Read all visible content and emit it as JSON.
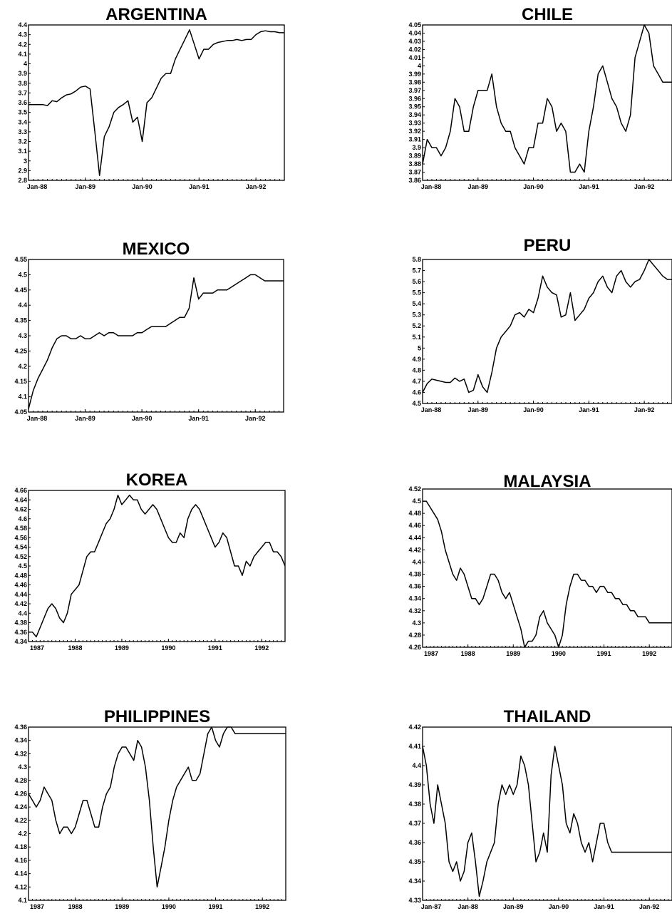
{
  "chart_data": [
    {
      "type": "line",
      "title": "ARGENTINA",
      "ylim": [
        2.8,
        4.4
      ],
      "yticks": [
        "4.4",
        "4.3",
        "4.2",
        "4.1",
        "4",
        "3.9",
        "3.8",
        "3.7",
        "3.6",
        "3.5",
        "3.4",
        "3.3",
        "3.2",
        "3.1",
        "3",
        "2.9",
        "2.8"
      ],
      "xticks": [
        "Jan-88",
        "Jan-89",
        "Jan-90",
        "Jan-91",
        "Jan-92"
      ],
      "xrange": [
        0,
        54
      ],
      "xtick_pos": [
        0,
        12,
        24,
        36,
        48
      ],
      "values": [
        3.58,
        3.58,
        3.58,
        3.58,
        3.57,
        3.62,
        3.61,
        3.65,
        3.68,
        3.69,
        3.72,
        3.76,
        3.77,
        3.74,
        3.3,
        2.85,
        3.25,
        3.35,
        3.5,
        3.55,
        3.58,
        3.62,
        3.4,
        3.45,
        3.2,
        3.6,
        3.65,
        3.75,
        3.85,
        3.9,
        3.9,
        4.05,
        4.15,
        4.25,
        4.35,
        4.2,
        4.05,
        4.15,
        4.15,
        4.2,
        4.22,
        4.23,
        4.24,
        4.24,
        4.25,
        4.24,
        4.25,
        4.25,
        4.3,
        4.33,
        4.34,
        4.33,
        4.33,
        4.32,
        4.32
      ]
    },
    {
      "type": "line",
      "title": "CHILE",
      "ylim": [
        3.86,
        4.05
      ],
      "yticks": [
        "4.05",
        "4.04",
        "4.03",
        "4.02",
        "4.01",
        "4",
        "3.99",
        "3.98",
        "3.97",
        "3.96",
        "3.95",
        "3.94",
        "3.93",
        "3.92",
        "3.91",
        "3.9",
        "3.89",
        "3.88",
        "3.87",
        "3.86"
      ],
      "xticks": [
        "Jan-88",
        "Jan-89",
        "Jan-90",
        "Jan-91",
        "Jan-92"
      ],
      "xrange": [
        0,
        54
      ],
      "xtick_pos": [
        0,
        12,
        24,
        36,
        48
      ],
      "values": [
        3.88,
        3.91,
        3.9,
        3.9,
        3.89,
        3.9,
        3.92,
        3.96,
        3.95,
        3.92,
        3.92,
        3.95,
        3.97,
        3.97,
        3.97,
        3.99,
        3.95,
        3.93,
        3.92,
        3.92,
        3.9,
        3.89,
        3.88,
        3.9,
        3.9,
        3.93,
        3.93,
        3.96,
        3.95,
        3.92,
        3.93,
        3.92,
        3.87,
        3.87,
        3.88,
        3.87,
        3.92,
        3.95,
        3.99,
        4.0,
        3.98,
        3.96,
        3.95,
        3.93,
        3.92,
        3.94,
        4.01,
        4.03,
        4.05,
        4.04,
        4.0,
        3.99,
        3.98,
        3.98,
        3.98
      ]
    },
    {
      "type": "line",
      "title": "MEXICO",
      "ylim": [
        4.05,
        4.55
      ],
      "yticks": [
        "4.55",
        "4.5",
        "4.45",
        "4.4",
        "4.35",
        "4.3",
        "4.25",
        "4.2",
        "4.15",
        "4.1",
        "4.05"
      ],
      "xticks": [
        "Jan-88",
        "Jan-89",
        "Jan-90",
        "Jan-91",
        "Jan-92"
      ],
      "xrange": [
        0,
        54
      ],
      "xtick_pos": [
        0,
        12,
        24,
        36,
        48
      ],
      "values": [
        4.06,
        4.12,
        4.16,
        4.19,
        4.22,
        4.26,
        4.29,
        4.3,
        4.3,
        4.29,
        4.29,
        4.3,
        4.29,
        4.29,
        4.3,
        4.31,
        4.3,
        4.31,
        4.31,
        4.3,
        4.3,
        4.3,
        4.3,
        4.31,
        4.31,
        4.32,
        4.33,
        4.33,
        4.33,
        4.33,
        4.34,
        4.35,
        4.36,
        4.36,
        4.39,
        4.49,
        4.42,
        4.44,
        4.44,
        4.44,
        4.45,
        4.45,
        4.45,
        4.46,
        4.47,
        4.48,
        4.49,
        4.5,
        4.5,
        4.49,
        4.48,
        4.48,
        4.48,
        4.48,
        4.48
      ]
    },
    {
      "type": "line",
      "title": "PERU",
      "ylim": [
        4.5,
        5.8
      ],
      "yticks": [
        "5.8",
        "5.7",
        "5.6",
        "5.5",
        "5.4",
        "5.3",
        "5.2",
        "5.1",
        "5",
        "4.9",
        "4.8",
        "4.7",
        "4.6",
        "4.5"
      ],
      "xticks": [
        "Jan-88",
        "Jan-89",
        "Jan-90",
        "Jan-91",
        "Jan-92"
      ],
      "xrange": [
        0,
        54
      ],
      "xtick_pos": [
        0,
        12,
        24,
        36,
        48
      ],
      "values": [
        4.6,
        4.68,
        4.72,
        4.71,
        4.7,
        4.69,
        4.69,
        4.73,
        4.7,
        4.72,
        4.6,
        4.62,
        4.76,
        4.65,
        4.6,
        4.78,
        5.0,
        5.1,
        5.15,
        5.2,
        5.3,
        5.32,
        5.28,
        5.35,
        5.32,
        5.45,
        5.65,
        5.55,
        5.5,
        5.48,
        5.28,
        5.3,
        5.5,
        5.25,
        5.3,
        5.35,
        5.45,
        5.5,
        5.6,
        5.65,
        5.55,
        5.5,
        5.65,
        5.7,
        5.6,
        5.55,
        5.6,
        5.62,
        5.7,
        5.8,
        5.75,
        5.7,
        5.65,
        5.62,
        5.62
      ]
    },
    {
      "type": "line",
      "title": "KOREA",
      "ylim": [
        4.34,
        4.66
      ],
      "yticks": [
        "4.66",
        "4.64",
        "4.62",
        "4.6",
        "4.58",
        "4.56",
        "4.54",
        "4.52",
        "4.5",
        "4.48",
        "4.46",
        "4.44",
        "4.42",
        "4.4",
        "4.38",
        "4.36",
        "4.34"
      ],
      "xticks": [
        "1987",
        "1988",
        "1989",
        "1990",
        "1991",
        "1992"
      ],
      "xrange": [
        0,
        66
      ],
      "xtick_pos": [
        0,
        12,
        24,
        36,
        48,
        60
      ],
      "values": [
        4.36,
        4.36,
        4.35,
        4.37,
        4.39,
        4.41,
        4.42,
        4.41,
        4.39,
        4.38,
        4.4,
        4.44,
        4.45,
        4.46,
        4.49,
        4.52,
        4.53,
        4.53,
        4.55,
        4.57,
        4.59,
        4.6,
        4.62,
        4.65,
        4.63,
        4.64,
        4.65,
        4.64,
        4.64,
        4.62,
        4.61,
        4.62,
        4.63,
        4.62,
        4.6,
        4.58,
        4.56,
        4.55,
        4.55,
        4.57,
        4.56,
        4.6,
        4.62,
        4.63,
        4.62,
        4.6,
        4.58,
        4.56,
        4.54,
        4.55,
        4.57,
        4.56,
        4.53,
        4.5,
        4.5,
        4.48,
        4.51,
        4.5,
        4.52,
        4.53,
        4.54,
        4.55,
        4.55,
        4.53,
        4.53,
        4.52,
        4.5
      ]
    },
    {
      "type": "line",
      "title": "MALAYSIA",
      "ylim": [
        4.26,
        4.52
      ],
      "yticks": [
        "4.52",
        "4.5",
        "4.48",
        "4.46",
        "4.44",
        "4.42",
        "4.4",
        "4.38",
        "4.36",
        "4.34",
        "4.32",
        "4.3",
        "4.28",
        "4.26"
      ],
      "xticks": [
        "1987",
        "1988",
        "1989",
        "1990",
        "1991",
        "1992"
      ],
      "xrange": [
        0,
        66
      ],
      "xtick_pos": [
        0,
        12,
        24,
        36,
        48,
        60
      ],
      "values": [
        4.5,
        4.5,
        4.49,
        4.48,
        4.47,
        4.45,
        4.42,
        4.4,
        4.38,
        4.37,
        4.39,
        4.38,
        4.36,
        4.34,
        4.34,
        4.33,
        4.34,
        4.36,
        4.38,
        4.38,
        4.37,
        4.35,
        4.34,
        4.35,
        4.33,
        4.31,
        4.29,
        4.26,
        4.27,
        4.27,
        4.28,
        4.31,
        4.32,
        4.3,
        4.29,
        4.28,
        4.26,
        4.28,
        4.33,
        4.36,
        4.38,
        4.38,
        4.37,
        4.37,
        4.36,
        4.36,
        4.35,
        4.36,
        4.36,
        4.35,
        4.35,
        4.34,
        4.34,
        4.33,
        4.33,
        4.32,
        4.32,
        4.31,
        4.31,
        4.31,
        4.3,
        4.3,
        4.3,
        4.3,
        4.3,
        4.3,
        4.3
      ]
    },
    {
      "type": "line",
      "title": "PHILIPPINES",
      "ylim": [
        4.1,
        4.36
      ],
      "yticks": [
        "4.36",
        "4.34",
        "4.32",
        "4.3",
        "4.28",
        "4.26",
        "4.24",
        "4.22",
        "4.2",
        "4.18",
        "4.16",
        "4.14",
        "4.12",
        "4.1"
      ],
      "xticks": [
        "1987",
        "1988",
        "1989",
        "1990",
        "1991",
        "1992"
      ],
      "xrange": [
        0,
        66
      ],
      "xtick_pos": [
        0,
        12,
        24,
        36,
        48,
        60
      ],
      "values": [
        4.26,
        4.25,
        4.24,
        4.25,
        4.27,
        4.26,
        4.25,
        4.22,
        4.2,
        4.21,
        4.21,
        4.2,
        4.21,
        4.23,
        4.25,
        4.25,
        4.23,
        4.21,
        4.21,
        4.24,
        4.26,
        4.27,
        4.3,
        4.32,
        4.33,
        4.33,
        4.32,
        4.31,
        4.34,
        4.33,
        4.3,
        4.25,
        4.18,
        4.12,
        4.15,
        4.18,
        4.22,
        4.25,
        4.27,
        4.28,
        4.29,
        4.3,
        4.28,
        4.28,
        4.29,
        4.32,
        4.35,
        4.36,
        4.34,
        4.33,
        4.35,
        4.36,
        4.36,
        4.35,
        4.35,
        4.35,
        4.35,
        4.35,
        4.35,
        4.35,
        4.35,
        4.35,
        4.35,
        4.35,
        4.35,
        4.35,
        4.35
      ]
    },
    {
      "type": "line",
      "title": "THAILAND",
      "ylim": [
        4.33,
        4.42
      ],
      "yticks": [
        "4.42",
        "4.41",
        "4.4",
        "4.39",
        "4.38",
        "4.37",
        "4.36",
        "4.35",
        "4.34",
        "4.33"
      ],
      "xticks": [
        "Jan-87",
        "Jan-88",
        "Jan-89",
        "Jan-90",
        "Jan-91",
        "Jan-92"
      ],
      "xrange": [
        0,
        66
      ],
      "xtick_pos": [
        0,
        12,
        24,
        36,
        48,
        60
      ],
      "values": [
        4.41,
        4.4,
        4.38,
        4.37,
        4.39,
        4.38,
        4.37,
        4.35,
        4.345,
        4.35,
        4.34,
        4.345,
        4.36,
        4.365,
        4.35,
        4.332,
        4.34,
        4.35,
        4.355,
        4.36,
        4.38,
        4.39,
        4.385,
        4.39,
        4.385,
        4.39,
        4.405,
        4.4,
        4.39,
        4.37,
        4.35,
        4.355,
        4.365,
        4.355,
        4.395,
        4.41,
        4.4,
        4.39,
        4.37,
        4.365,
        4.375,
        4.37,
        4.36,
        4.355,
        4.36,
        4.35,
        4.36,
        4.37,
        4.37,
        4.36,
        4.355,
        4.355,
        4.355,
        4.355,
        4.355,
        4.355,
        4.355,
        4.355,
        4.355,
        4.355,
        4.355,
        4.355,
        4.355,
        4.355,
        4.355,
        4.355,
        4.355
      ]
    }
  ]
}
